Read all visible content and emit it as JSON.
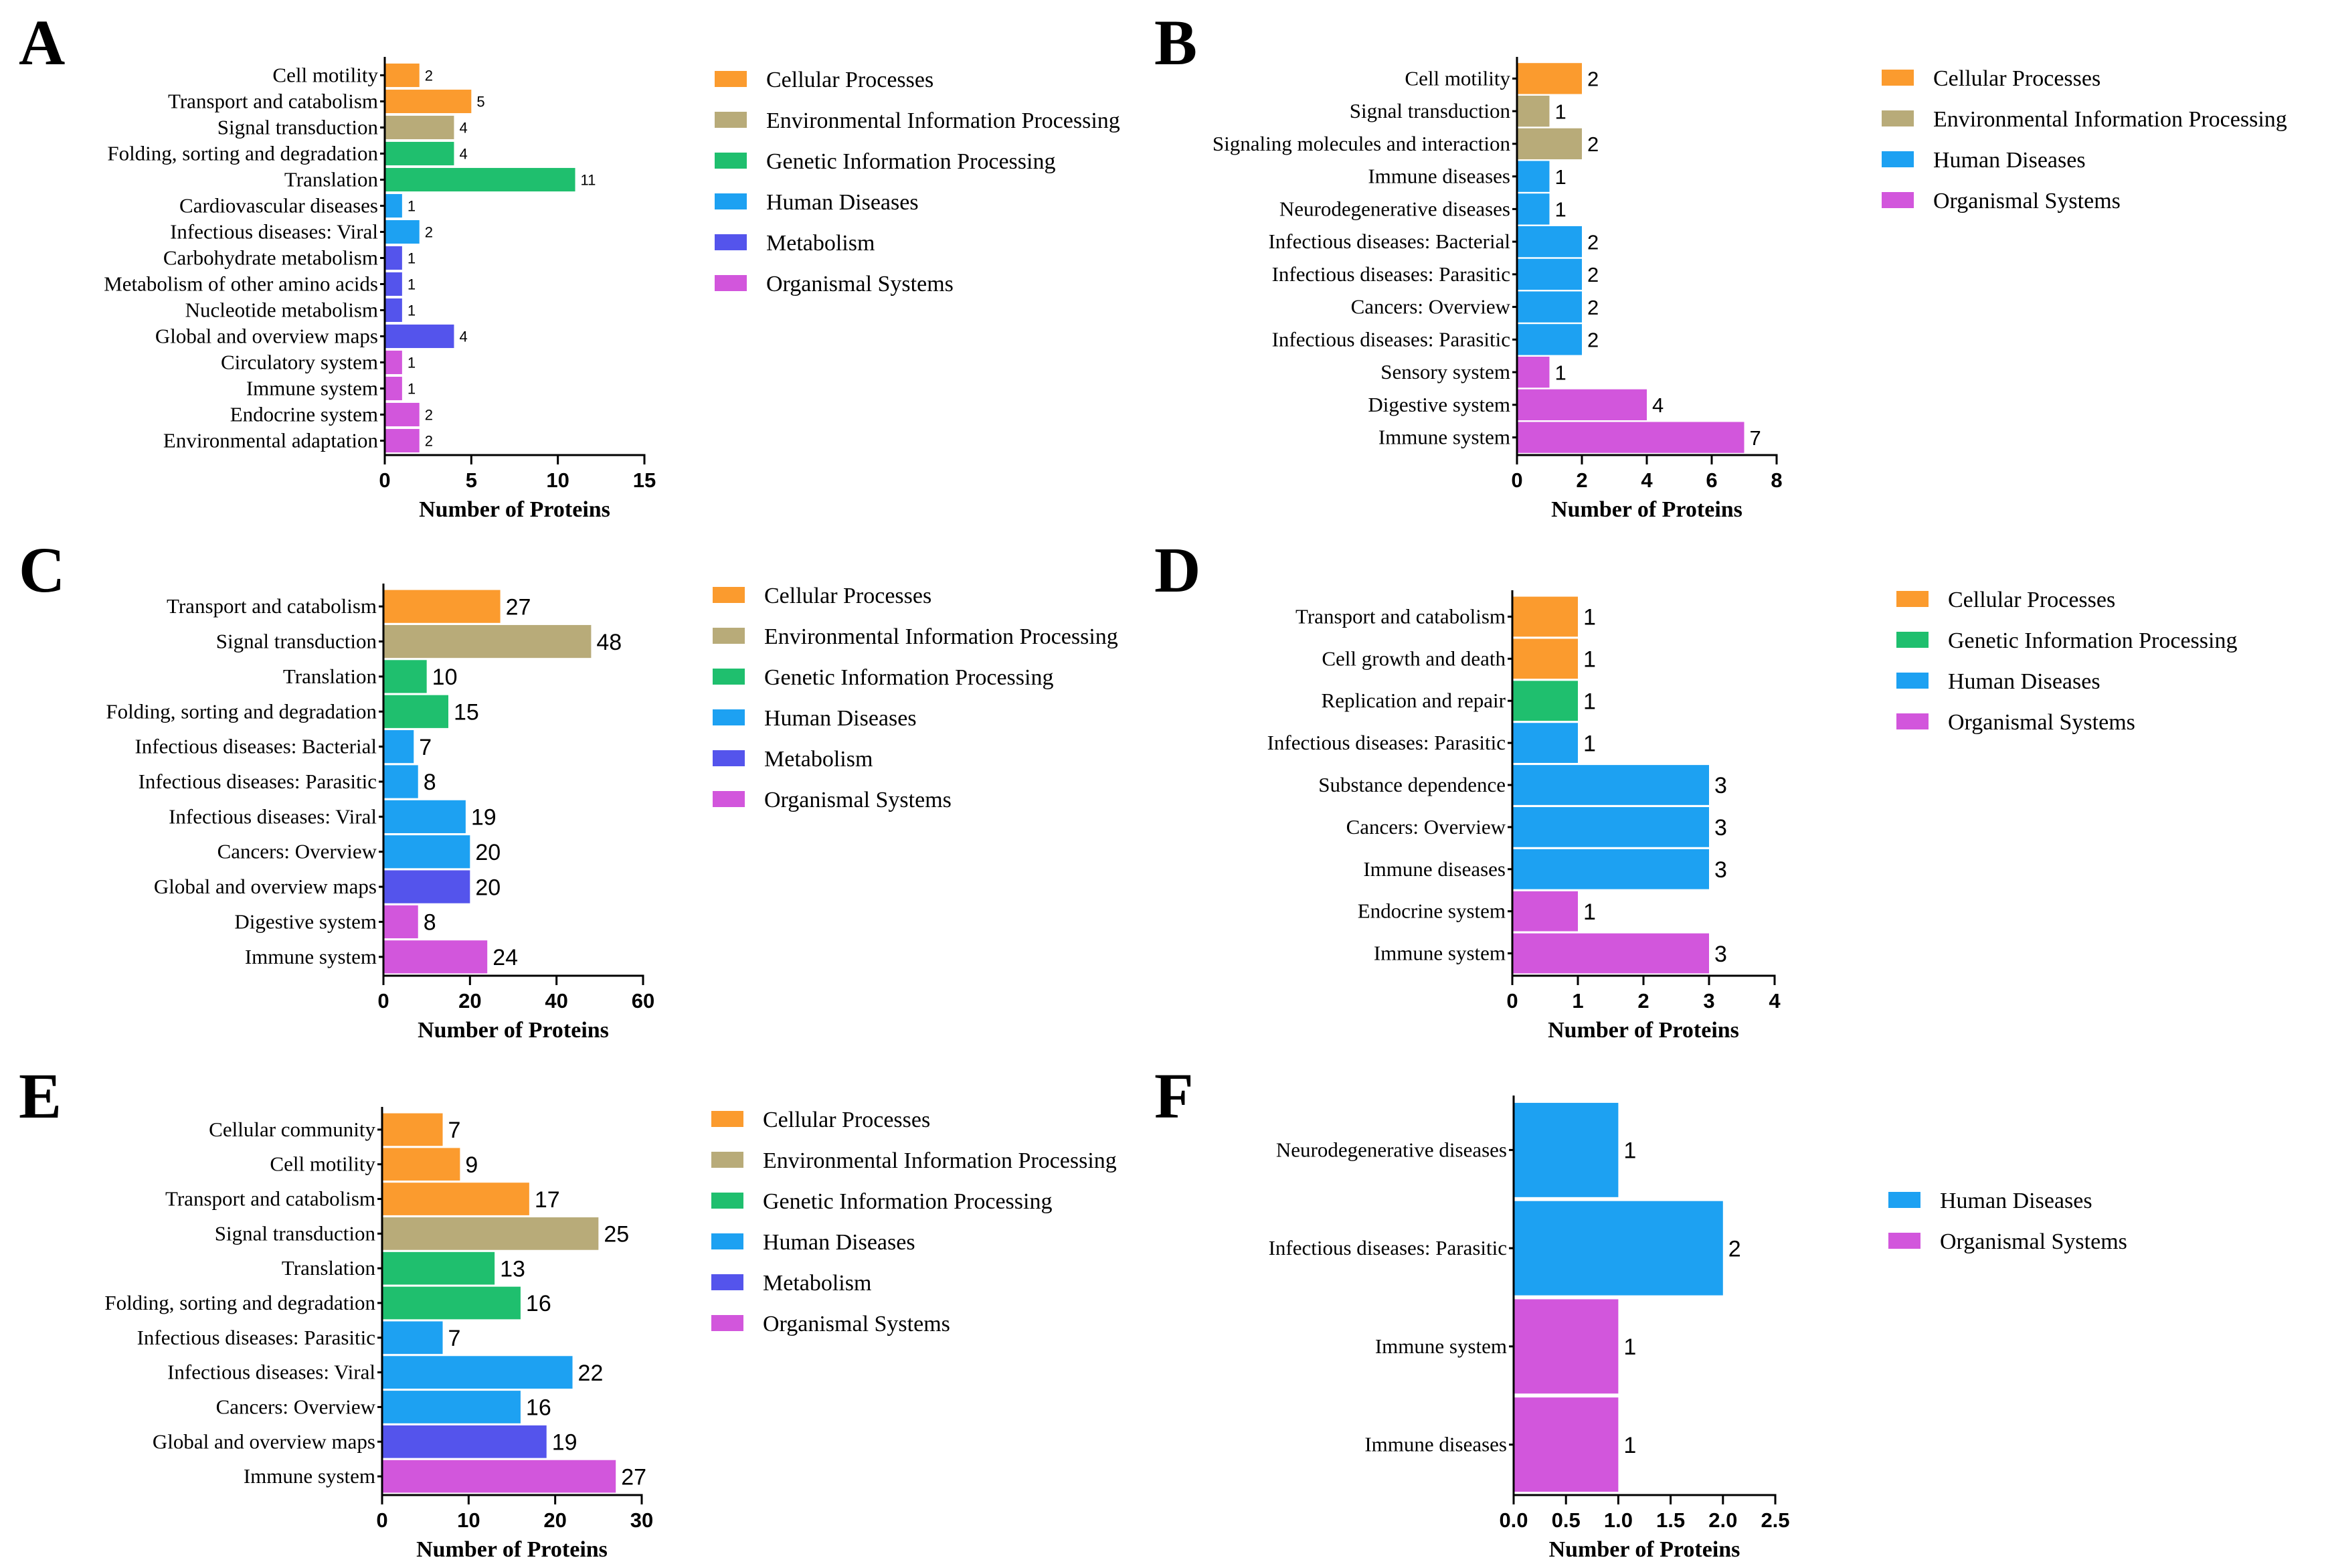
{
  "colors": {
    "Cellular Processes": "#fb9b2e",
    "Environmental Information Processing": "#b8ab79",
    "Genetic Information Processing": "#1fbf6e",
    "Human Diseases": "#1da1f2",
    "Metabolism": "#5454ec",
    "Organismal Systems": "#d256dc"
  },
  "chart_data": [
    {
      "panel": "A",
      "type": "bar",
      "orientation": "horizontal",
      "xlabel": "Number of Proteins",
      "xlim": [
        0,
        15
      ],
      "xticks": [
        "0",
        "5",
        "10",
        "15"
      ],
      "legend": [
        "Cellular Processes",
        "Environmental Information Processing",
        "Genetic Information Processing",
        "Human Diseases",
        "Metabolism",
        "Organismal Systems"
      ],
      "bars": [
        {
          "label": "Cell motility",
          "value": 2,
          "group": "Cellular Processes"
        },
        {
          "label": "Transport and catabolism",
          "value": 5,
          "group": "Cellular Processes"
        },
        {
          "label": "Signal transduction",
          "value": 4,
          "group": "Environmental Information Processing"
        },
        {
          "label": "Folding, sorting and degradation",
          "value": 4,
          "group": "Genetic Information Processing"
        },
        {
          "label": "Translation",
          "value": 11,
          "group": "Genetic Information Processing"
        },
        {
          "label": "Cardiovascular diseases",
          "value": 1,
          "group": "Human Diseases"
        },
        {
          "label": "Infectious diseases: Viral",
          "value": 2,
          "group": "Human Diseases"
        },
        {
          "label": "Carbohydrate metabolism",
          "value": 1,
          "group": "Metabolism"
        },
        {
          "label": "Metabolism of other amino acids",
          "value": 1,
          "group": "Metabolism"
        },
        {
          "label": "Nucleotide metabolism",
          "value": 1,
          "group": "Metabolism"
        },
        {
          "label": "Global and overview maps",
          "value": 4,
          "group": "Metabolism"
        },
        {
          "label": "Circulatory system",
          "value": 1,
          "group": "Organismal Systems"
        },
        {
          "label": "Immune system",
          "value": 1,
          "group": "Organismal Systems"
        },
        {
          "label": "Endocrine system",
          "value": 2,
          "group": "Organismal Systems"
        },
        {
          "label": "Environmental adaptation",
          "value": 2,
          "group": "Organismal Systems"
        }
      ]
    },
    {
      "panel": "B",
      "type": "bar",
      "orientation": "horizontal",
      "xlabel": "Number of Proteins",
      "xlim": [
        0,
        8
      ],
      "xticks": [
        "0",
        "2",
        "4",
        "6",
        "8"
      ],
      "legend": [
        "Cellular Processes",
        "Environmental Information Processing",
        "Human Diseases",
        "Organismal Systems"
      ],
      "bars": [
        {
          "label": "Cell motility",
          "value": 2,
          "group": "Cellular Processes"
        },
        {
          "label": "Signal transduction",
          "value": 1,
          "group": "Environmental Information Processing"
        },
        {
          "label": "Signaling molecules and interaction",
          "value": 2,
          "group": "Environmental Information Processing"
        },
        {
          "label": "Immune diseases",
          "value": 1,
          "group": "Human Diseases"
        },
        {
          "label": "Neurodegenerative diseases",
          "value": 1,
          "group": "Human Diseases"
        },
        {
          "label": "Infectious diseases: Bacterial",
          "value": 2,
          "group": "Human Diseases"
        },
        {
          "label": "Infectious diseases: Parasitic",
          "value": 2,
          "group": "Human Diseases"
        },
        {
          "label": "Cancers: Overview",
          "value": 2,
          "group": "Human Diseases"
        },
        {
          "label": "Infectious diseases: Parasitic",
          "value": 2,
          "group": "Human Diseases"
        },
        {
          "label": "Sensory system",
          "value": 1,
          "group": "Organismal Systems"
        },
        {
          "label": "Digestive system",
          "value": 4,
          "group": "Organismal Systems"
        },
        {
          "label": "Immune system",
          "value": 7,
          "group": "Organismal Systems"
        }
      ]
    },
    {
      "panel": "C",
      "type": "bar",
      "orientation": "horizontal",
      "xlabel": "Number of Proteins",
      "xlim": [
        0,
        60
      ],
      "xticks": [
        "0",
        "20",
        "40",
        "60"
      ],
      "legend": [
        "Cellular Processes",
        "Environmental Information Processing",
        "Genetic Information Processing",
        "Human Diseases",
        "Metabolism",
        "Organismal Systems"
      ],
      "bars": [
        {
          "label": "Transport and catabolism",
          "value": 27,
          "group": "Cellular Processes"
        },
        {
          "label": "Signal transduction",
          "value": 48,
          "group": "Environmental Information Processing"
        },
        {
          "label": "Translation",
          "value": 10,
          "group": "Genetic Information Processing"
        },
        {
          "label": "Folding, sorting and degradation",
          "value": 15,
          "group": "Genetic Information Processing"
        },
        {
          "label": "Infectious diseases: Bacterial",
          "value": 7,
          "group": "Human Diseases"
        },
        {
          "label": "Infectious diseases: Parasitic",
          "value": 8,
          "group": "Human Diseases"
        },
        {
          "label": "Infectious diseases: Viral",
          "value": 19,
          "group": "Human Diseases"
        },
        {
          "label": "Cancers: Overview",
          "value": 20,
          "group": "Human Diseases"
        },
        {
          "label": "Global and overview maps",
          "value": 20,
          "group": "Metabolism"
        },
        {
          "label": "Digestive system",
          "value": 8,
          "group": "Organismal Systems"
        },
        {
          "label": "Immune system",
          "value": 24,
          "group": "Organismal Systems"
        }
      ]
    },
    {
      "panel": "D",
      "type": "bar",
      "orientation": "horizontal",
      "xlabel": "Number of Proteins",
      "xlim": [
        0,
        4
      ],
      "xticks": [
        "0",
        "1",
        "2",
        "3",
        "4"
      ],
      "legend": [
        "Cellular Processes",
        "Genetic Information Processing",
        "Human Diseases",
        "Organismal Systems"
      ],
      "bars": [
        {
          "label": "Transport and catabolism",
          "value": 1,
          "group": "Cellular Processes"
        },
        {
          "label": "Cell growth and death",
          "value": 1,
          "group": "Cellular Processes"
        },
        {
          "label": "Replication and repair",
          "value": 1,
          "group": "Genetic Information Processing"
        },
        {
          "label": "Infectious diseases: Parasitic",
          "value": 1,
          "group": "Human Diseases"
        },
        {
          "label": "Substance dependence",
          "value": 3,
          "group": "Human Diseases"
        },
        {
          "label": "Cancers: Overview",
          "value": 3,
          "group": "Human Diseases"
        },
        {
          "label": "Immune diseases",
          "value": 3,
          "group": "Human Diseases"
        },
        {
          "label": "Endocrine system",
          "value": 1,
          "group": "Organismal Systems"
        },
        {
          "label": "Immune system",
          "value": 3,
          "group": "Organismal Systems"
        }
      ]
    },
    {
      "panel": "E",
      "type": "bar",
      "orientation": "horizontal",
      "xlabel": "Number of Proteins",
      "xlim": [
        0,
        30
      ],
      "xticks": [
        "0",
        "10",
        "20",
        "30"
      ],
      "legend": [
        "Cellular Processes",
        "Environmental Information Processing",
        "Genetic Information Processing",
        "Human Diseases",
        "Metabolism",
        "Organismal Systems"
      ],
      "bars": [
        {
          "label": "Cellular community",
          "value": 7,
          "group": "Cellular Processes"
        },
        {
          "label": "Cell motility",
          "value": 9,
          "group": "Cellular Processes"
        },
        {
          "label": "Transport and catabolism",
          "value": 17,
          "group": "Cellular Processes"
        },
        {
          "label": "Signal transduction",
          "value": 25,
          "group": "Environmental Information Processing"
        },
        {
          "label": "Translation",
          "value": 13,
          "group": "Genetic Information Processing"
        },
        {
          "label": "Folding, sorting and degradation",
          "value": 16,
          "group": "Genetic Information Processing"
        },
        {
          "label": "Infectious diseases: Parasitic",
          "value": 7,
          "group": "Human Diseases"
        },
        {
          "label": "Infectious diseases: Viral",
          "value": 22,
          "group": "Human Diseases"
        },
        {
          "label": "Cancers: Overview",
          "value": 16,
          "group": "Human Diseases"
        },
        {
          "label": "Global and overview maps",
          "value": 19,
          "group": "Metabolism"
        },
        {
          "label": "Immune system",
          "value": 27,
          "group": "Organismal Systems"
        }
      ]
    },
    {
      "panel": "F",
      "type": "bar",
      "orientation": "horizontal",
      "xlabel": "Number of Proteins",
      "xlim": [
        0,
        2.5
      ],
      "xticks": [
        "0.0",
        "0.5",
        "1.0",
        "1.5",
        "2.0",
        "2.5"
      ],
      "legend": [
        "Human Diseases",
        "Organismal Systems"
      ],
      "bars": [
        {
          "label": "Neurodegenerative diseases",
          "value": 1,
          "group": "Human Diseases"
        },
        {
          "label": "Infectious diseases: Parasitic",
          "value": 2,
          "group": "Human Diseases"
        },
        {
          "label": "Immune system",
          "value": 1,
          "group": "Organismal Systems"
        },
        {
          "label": "Immune diseases",
          "value": 1,
          "group": "Organismal Systems"
        }
      ]
    }
  ]
}
